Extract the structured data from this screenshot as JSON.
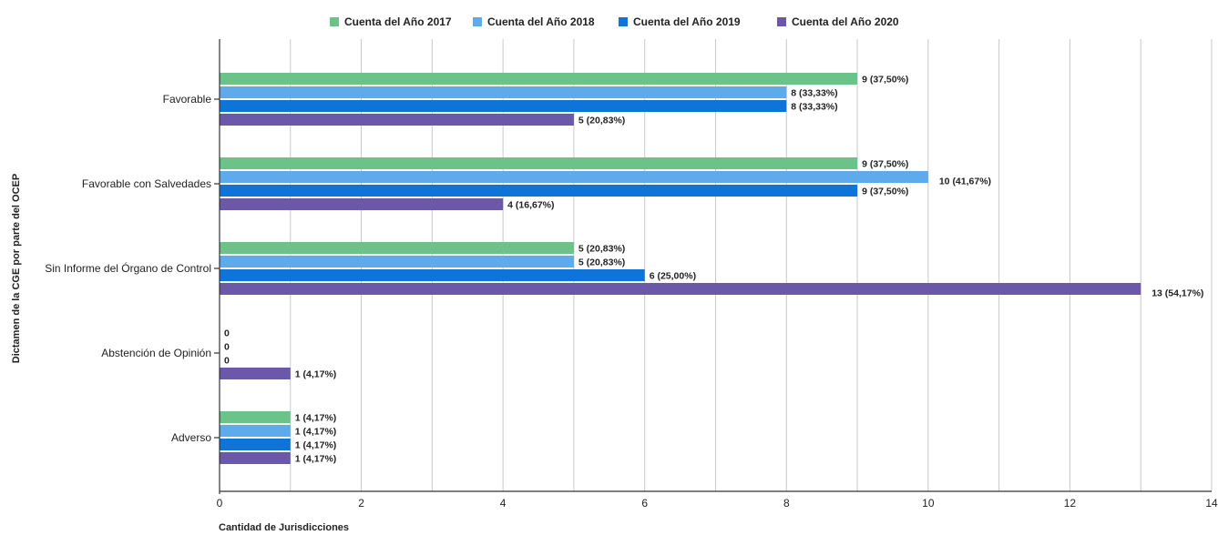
{
  "chart_data": {
    "type": "bar",
    "orientation": "horizontal",
    "xlabel": "Cantidad de Jurisdicciones",
    "ylabel": "Dictamen de la CGE por parte del OCEP",
    "xlim": [
      0,
      14
    ],
    "x_ticks": [
      "0",
      "2",
      "4",
      "6",
      "8",
      "10",
      "12",
      "14"
    ],
    "grid": true,
    "legend_position": "top",
    "categories": [
      "Favorable",
      "Favorable con Salvedades",
      "Sin Informe del Órgano de Control",
      "Abstención de Opinión",
      "Adverso"
    ],
    "series": [
      {
        "name": "Cuenta del Año 2017",
        "color": "#6cc38a",
        "values": [
          9,
          9,
          5,
          0,
          1
        ],
        "labels": [
          "9 (37,50%)",
          "9 (37,50%)",
          "5 (20,83%)",
          "0",
          "1 (4,17%)"
        ]
      },
      {
        "name": "Cuenta del Año 2018",
        "color": "#5faaeb",
        "values": [
          8,
          10,
          5,
          0,
          1
        ],
        "labels": [
          "8 (33,33%)",
          "10 (41,67%)",
          "5 (20,83%)",
          "0",
          "1 (4,17%)"
        ]
      },
      {
        "name": "Cuenta del Año 2019",
        "color": "#0f74d9",
        "values": [
          8,
          9,
          6,
          0,
          1
        ],
        "labels": [
          "8 (33,33%)",
          "9 (37,50%)",
          "6 (25,00%)",
          "0",
          "1 (4,17%)"
        ]
      },
      {
        "name": "Cuenta del Año 2020",
        "color": "#6b58a8",
        "values": [
          5,
          4,
          13,
          1,
          1
        ],
        "labels": [
          "5 (20,83%)",
          "4 (16,67%)",
          "13 (54,17%)",
          "1 (4,17%)",
          "1 (4,17%)"
        ]
      }
    ]
  }
}
